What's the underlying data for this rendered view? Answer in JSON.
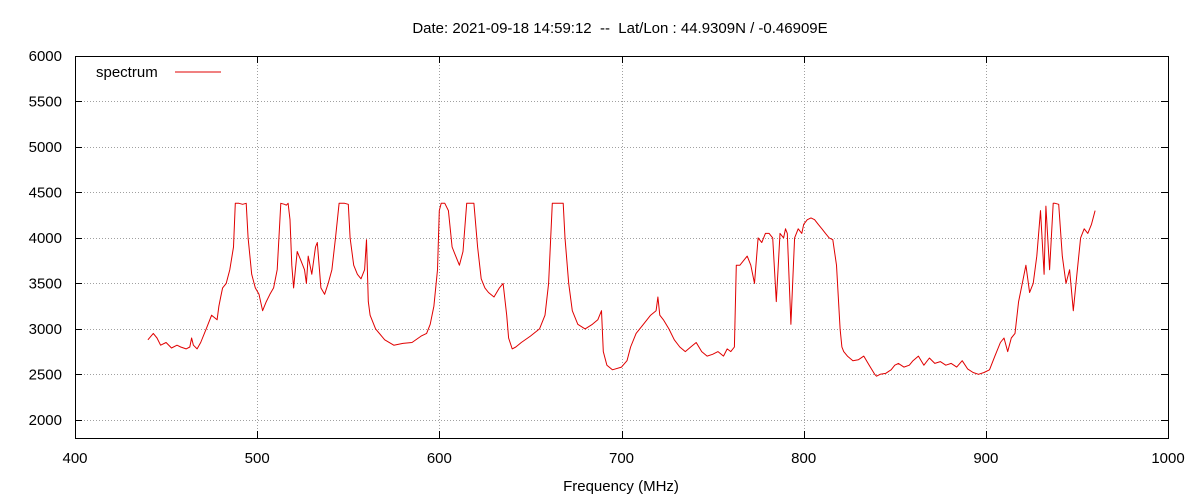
{
  "chart_data": {
    "type": "line",
    "title": "Date: 2021-09-18 14:59:12  --  Lat/Lon : 44.9309N / -0.46909E",
    "xlabel": "Frequency (MHz)",
    "ylabel": "",
    "xlim": [
      400,
      1000
    ],
    "ylim": [
      1800,
      6000
    ],
    "xticks": [
      400,
      500,
      600,
      700,
      800,
      900,
      1000
    ],
    "yticks": [
      2000,
      2500,
      3000,
      3500,
      4000,
      4500,
      5000,
      5500,
      6000
    ],
    "grid": true,
    "legend_position": "top-left",
    "series": [
      {
        "name": "spectrum",
        "color": "#e00000",
        "x": [
          440,
          443,
          445,
          447,
          450,
          453,
          456,
          458,
          461,
          463,
          464,
          465,
          467,
          469,
          472,
          475,
          478,
          479,
          480,
          481,
          483,
          485,
          487,
          488,
          490,
          492,
          494,
          495,
          497,
          499,
          501,
          503,
          505,
          507,
          509,
          511,
          513,
          515,
          516,
          517,
          518,
          519,
          520,
          522,
          524,
          526,
          527,
          528,
          530,
          532,
          533,
          535,
          537,
          539,
          541,
          543,
          545,
          548,
          550,
          551,
          553,
          555,
          557,
          559,
          560,
          561,
          562,
          565,
          570,
          575,
          580,
          585,
          590,
          593,
          595,
          597,
          599,
          600,
          601,
          603,
          605,
          607,
          609,
          611,
          613,
          615,
          617,
          619,
          621,
          623,
          625,
          627,
          630,
          633,
          635,
          637,
          638,
          640,
          642,
          645,
          650,
          655,
          658,
          660,
          662,
          663,
          665,
          668,
          669,
          671,
          673,
          676,
          680,
          684,
          687,
          689,
          690,
          692,
          695,
          700,
          703,
          705,
          708,
          712,
          716,
          719,
          720,
          721,
          723,
          726,
          729,
          732,
          735,
          738,
          741,
          744,
          747,
          750,
          753,
          756,
          758,
          760,
          762,
          763,
          765,
          767,
          769,
          771,
          773,
          775,
          777,
          779,
          781,
          783,
          785,
          787,
          789,
          790,
          791,
          793,
          795,
          797,
          799,
          800,
          802,
          804,
          806,
          808,
          810,
          812,
          814,
          816,
          818,
          820,
          821,
          822,
          824,
          827,
          830,
          833,
          836,
          839,
          840,
          842,
          845,
          848,
          850,
          852,
          855,
          858,
          860,
          863,
          866,
          869,
          872,
          875,
          878,
          881,
          884,
          887,
          890,
          893,
          896,
          899,
          902,
          905,
          908,
          910,
          912,
          914,
          916,
          918,
          920,
          922,
          924,
          926,
          928,
          930,
          932,
          933,
          935,
          937,
          938,
          940,
          942,
          944,
          946,
          948,
          950,
          952,
          954,
          956,
          958,
          960
        ],
        "y": [
          2880,
          2950,
          2900,
          2820,
          2850,
          2790,
          2820,
          2800,
          2780,
          2800,
          2900,
          2820,
          2780,
          2850,
          3000,
          3150,
          3100,
          3250,
          3350,
          3450,
          3500,
          3650,
          3900,
          4380,
          4380,
          4370,
          4380,
          4000,
          3600,
          3450,
          3380,
          3200,
          3300,
          3380,
          3450,
          3650,
          4380,
          4370,
          4360,
          4380,
          4200,
          3700,
          3450,
          3850,
          3750,
          3650,
          3500,
          3800,
          3600,
          3900,
          3950,
          3450,
          3380,
          3500,
          3650,
          4000,
          4380,
          4380,
          4370,
          4000,
          3700,
          3600,
          3550,
          3650,
          3980,
          3300,
          3150,
          3000,
          2880,
          2820,
          2840,
          2850,
          2920,
          2950,
          3050,
          3250,
          3650,
          4300,
          4380,
          4380,
          4300,
          3900,
          3800,
          3700,
          3850,
          4380,
          4380,
          4380,
          3900,
          3550,
          3450,
          3400,
          3350,
          3450,
          3500,
          3150,
          2900,
          2780,
          2800,
          2850,
          2920,
          3000,
          3150,
          3500,
          4380,
          4380,
          4380,
          4380,
          4000,
          3500,
          3200,
          3050,
          3000,
          3050,
          3100,
          3200,
          2750,
          2600,
          2550,
          2580,
          2650,
          2800,
          2950,
          3050,
          3150,
          3200,
          3350,
          3150,
          3100,
          3000,
          2880,
          2800,
          2750,
          2800,
          2850,
          2750,
          2700,
          2720,
          2750,
          2700,
          2780,
          2750,
          2800,
          3700,
          3700,
          3750,
          3800,
          3700,
          3500,
          4000,
          3950,
          4050,
          4050,
          4000,
          3300,
          4050,
          4000,
          4100,
          4050,
          3050,
          4000,
          4100,
          4050,
          4150,
          4200,
          4220,
          4200,
          4150,
          4100,
          4050,
          4000,
          3980,
          3700,
          3000,
          2800,
          2750,
          2700,
          2650,
          2660,
          2700,
          2600,
          2500,
          2480,
          2500,
          2510,
          2550,
          2600,
          2620,
          2580,
          2600,
          2650,
          2700,
          2600,
          2680,
          2620,
          2640,
          2600,
          2620,
          2580,
          2650,
          2560,
          2520,
          2500,
          2520,
          2550,
          2700,
          2850,
          2900,
          2750,
          2900,
          2950,
          3300,
          3500,
          3700,
          3400,
          3500,
          3800,
          4300,
          3600,
          4350,
          3650,
          4380,
          4380,
          4370,
          3800,
          3500,
          3650,
          3200,
          3600,
          4000,
          4100,
          4050,
          4150,
          4300
        ]
      }
    ]
  }
}
